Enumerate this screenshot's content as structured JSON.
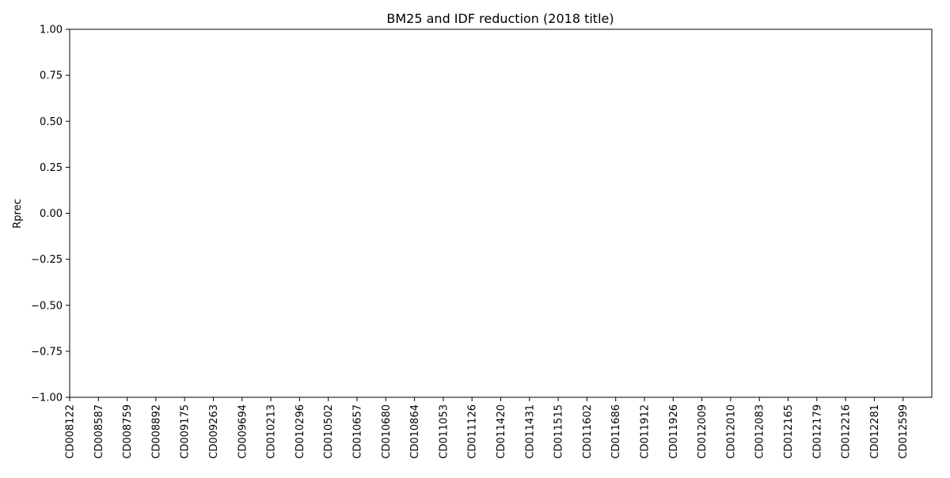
{
  "chart_data": {
    "type": "bar",
    "title": "BM25 and IDF reduction (2018 title)",
    "xlabel": "",
    "ylabel": "Rprec",
    "ylim": [
      -1.0,
      1.0
    ],
    "yticks": [
      "−1.00",
      "−0.75",
      "−0.50",
      "−0.25",
      "0.00",
      "0.25",
      "0.50",
      "0.75",
      "1.00"
    ],
    "ytick_values": [
      -1.0,
      -0.75,
      -0.5,
      -0.25,
      0.0,
      0.25,
      0.5,
      0.75,
      1.0
    ],
    "categories": [
      "CD008122",
      "CD008587",
      "CD008759",
      "CD008892",
      "CD009175",
      "CD009263",
      "CD009694",
      "CD010213",
      "CD010296",
      "CD010502",
      "CD010657",
      "CD010680",
      "CD010864",
      "CD011053",
      "CD011126",
      "CD011420",
      "CD011431",
      "CD011515",
      "CD011602",
      "CD011686",
      "CD011912",
      "CD011926",
      "CD012009",
      "CD012010",
      "CD012083",
      "CD012165",
      "CD012179",
      "CD012216",
      "CD012281",
      "CD012599"
    ],
    "values": [
      0,
      0,
      0,
      0,
      0,
      0,
      0,
      0,
      0,
      0,
      0,
      0,
      0,
      0,
      0,
      0,
      0,
      0,
      0,
      0,
      0,
      0,
      0,
      0,
      0,
      0,
      0,
      0,
      0,
      0
    ],
    "grid": false
  }
}
